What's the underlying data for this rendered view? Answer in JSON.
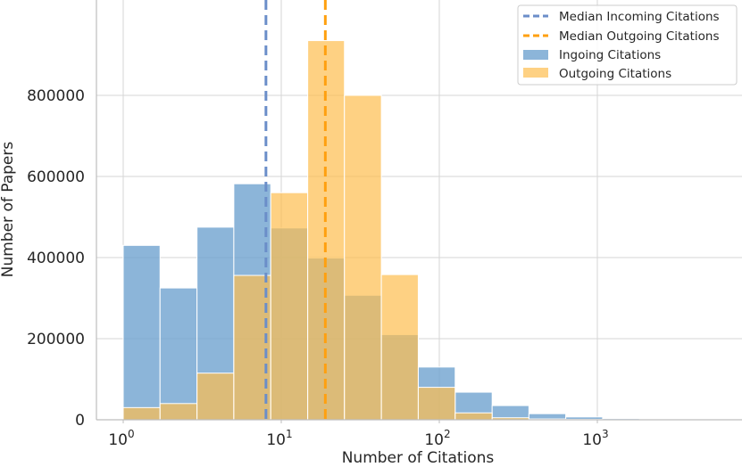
{
  "chart_data": {
    "type": "histogram",
    "title": "",
    "xlabel": "Number of Citations",
    "ylabel": "Number of Papers",
    "xscale": "log",
    "xlim": [
      0.55,
      8000
    ],
    "ylim": [
      0,
      1000000
    ],
    "grid": true,
    "legend_position": "top-right",
    "x_ticks": [
      {
        "value": 1,
        "base": "10",
        "exp": "0"
      },
      {
        "value": 10,
        "base": "10",
        "exp": "1"
      },
      {
        "value": 100,
        "base": "10",
        "exp": "2"
      },
      {
        "value": 1000,
        "base": "10",
        "exp": "3"
      }
    ],
    "y_ticks": [
      0,
      200000,
      400000,
      600000,
      800000
    ],
    "bin_edges": [
      1,
      1.71,
      2.93,
      5.01,
      8.58,
      14.7,
      25.1,
      43.0,
      73.6,
      126,
      216,
      369,
      631,
      1080,
      1850,
      3160,
      5410
    ],
    "series": [
      {
        "name": "Ingoing Citations",
        "color": "#6fa3cf",
        "counts": [
          430000,
          325000,
          475000,
          582000,
          473000,
          399000,
          307000,
          210000,
          130000,
          68000,
          35000,
          15000,
          7000,
          3000,
          1500,
          700
        ]
      },
      {
        "name": "Outgoing Citations",
        "color": "#fdbe4f",
        "counts": [
          30000,
          40000,
          115000,
          356000,
          560000,
          935000,
          800000,
          358000,
          80000,
          17000,
          5000,
          2000,
          1000,
          500,
          200,
          100
        ]
      }
    ],
    "reference_lines": [
      {
        "name": "Median Incoming Citations",
        "x": 8,
        "color": "#6b8ec9",
        "style": "dashed"
      },
      {
        "name": "Median Outgoing Citations",
        "x": 19,
        "color": "#ffa010",
        "style": "dashed"
      }
    ]
  }
}
